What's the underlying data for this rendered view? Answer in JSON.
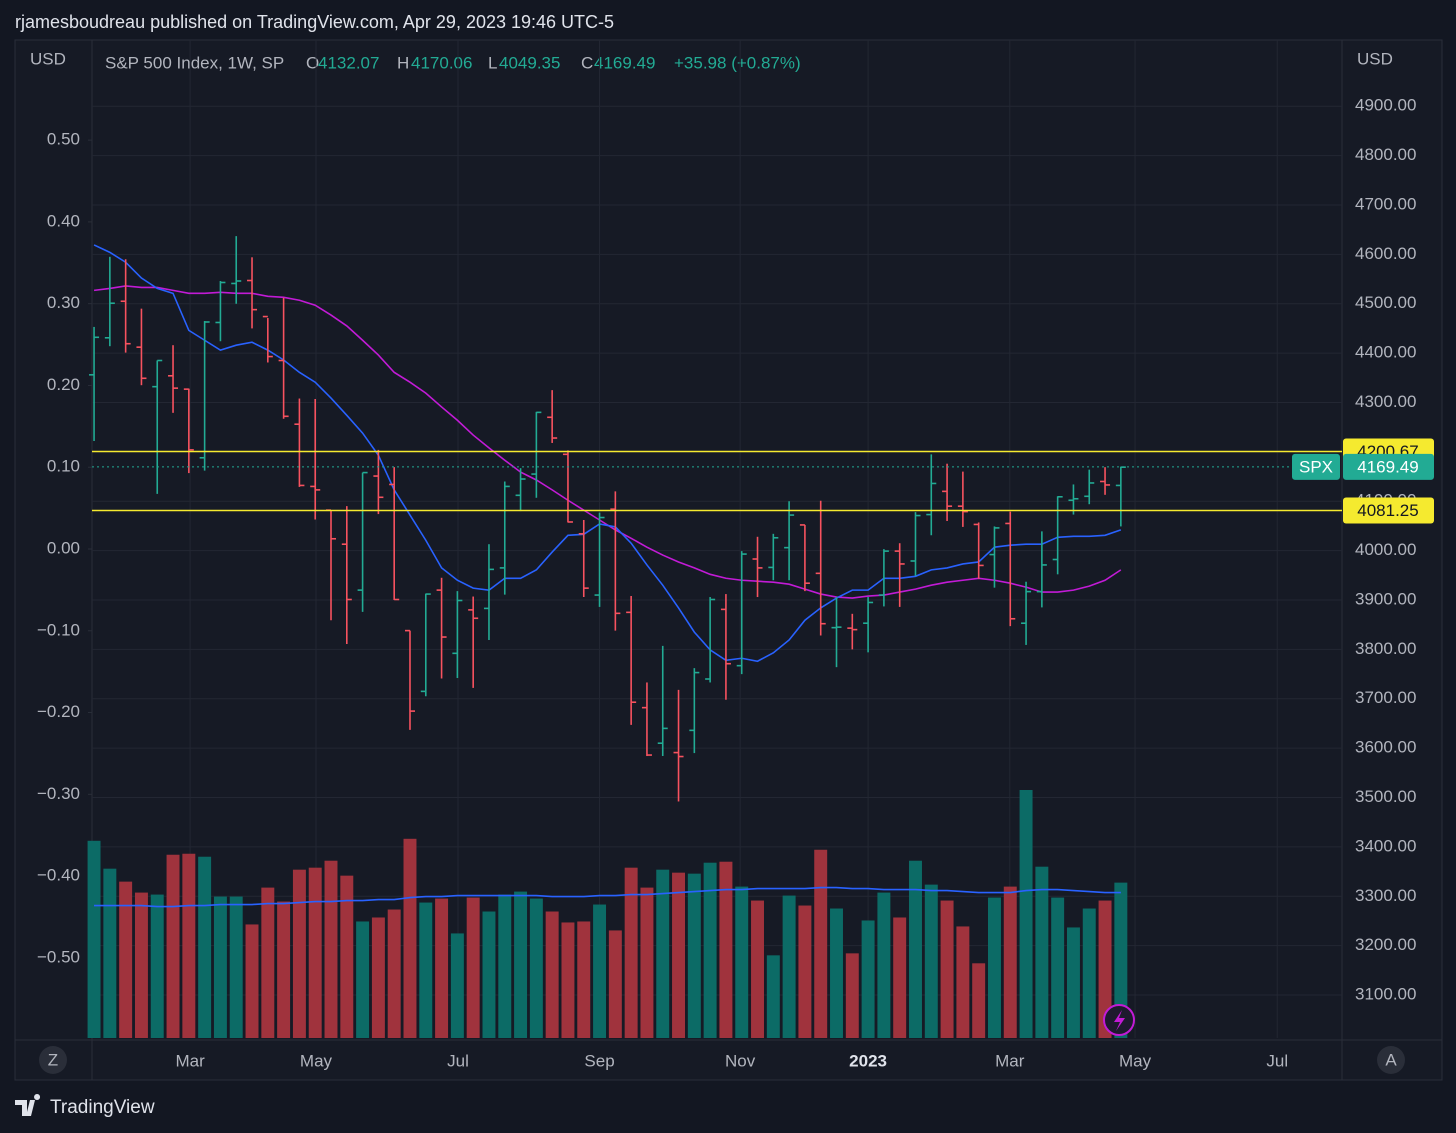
{
  "header": "rjamesboudreau published on TradingView.com, Apr 29, 2023 19:46 UTC-5",
  "ui": {
    "scale_buttons": [
      "Z",
      "A"
    ],
    "brand": "TradingView"
  },
  "chart_data": {
    "type": "ohlc",
    "title": "S&P 500 Index, 1W, SP",
    "legend": {
      "labels": [
        "O",
        "H",
        "L",
        "C"
      ],
      "values": [
        4132.07,
        4170.06,
        4049.35,
        4169.49
      ],
      "change": "+35.98 (+0.87%)"
    },
    "y_label": "USD",
    "y2_label": "USD",
    "open": [
      4356,
      4431,
      4505,
      4412,
      4332,
      4354,
      4327,
      4188,
      4462,
      4541,
      4547,
      4474,
      4385,
      4256,
      4130,
      4082,
      4013,
      3920,
      4151,
      4134,
      3838,
      3715,
      3920,
      3792,
      3880,
      3883,
      3965,
      4112,
      4155,
      4270,
      4195,
      4034,
      3910,
      4084,
      3875,
      3682,
      3610,
      3591,
      3636,
      3740,
      3881,
      3767,
      3983,
      3966,
      4006,
      4052,
      3954,
      3844,
      3843,
      3853,
      3910,
      3999,
      3979,
      4073,
      4120,
      4090,
      4053,
      3992,
      4055,
      3853,
      3917,
      3982,
      4102,
      4110,
      4140,
      4132
    ],
    "high": [
      4453,
      4595,
      4590,
      4490,
      4385,
      4416,
      4328,
      4465,
      4546,
      4637,
      4594,
      4471,
      4512,
      4308,
      4307,
      4082,
      4090,
      4158,
      4204,
      4169,
      3838,
      3913,
      3945,
      3918,
      3907,
      4013,
      4140,
      4167,
      4281,
      4325,
      4203,
      4062,
      4077,
      4120,
      3908,
      3733,
      3807,
      3718,
      3762,
      3906,
      3912,
      3999,
      4028,
      4034,
      4100,
      4052,
      4101,
      3906,
      3872,
      3906,
      4003,
      4015,
      4078,
      4195,
      4176,
      4160,
      4057,
      4049,
      4079,
      3937,
      4039,
      4110,
      4134,
      4164,
      4169,
      4170
    ],
    "low": [
      4222,
      4414,
      4401,
      4335,
      4115,
      4279,
      4157,
      4162,
      4424,
      4500,
      4450,
      4381,
      4267,
      4129,
      4063,
      3859,
      3811,
      3876,
      4074,
      3900,
      3637,
      3705,
      3741,
      3742,
      3722,
      3819,
      3911,
      4080,
      4107,
      4218,
      4057,
      3906,
      3886,
      3838,
      3647,
      3584,
      3584,
      3492,
      3590,
      3733,
      3698,
      3750,
      3906,
      3940,
      3940,
      3918,
      3828,
      3764,
      3800,
      3794,
      3887,
      3886,
      3949,
      4031,
      4060,
      4048,
      3943,
      3925,
      3847,
      3809,
      3885,
      3952,
      4073,
      4094,
      4113,
      4049
    ],
    "close": [
      4432,
      4501,
      4419,
      4349,
      4385,
      4329,
      4204,
      4463,
      4543,
      4546,
      4488,
      4393,
      4272,
      4132,
      4123,
      4024,
      3901,
      4158,
      4108,
      3901,
      3675,
      3912,
      3825,
      3899,
      3863,
      3962,
      4130,
      4145,
      4280,
      4228,
      4058,
      3924,
      4067,
      3873,
      3693,
      3586,
      3640,
      3583,
      3753,
      3901,
      3771,
      3993,
      3965,
      4026,
      4072,
      3934,
      3852,
      3845,
      3840,
      3895,
      3999,
      3973,
      4071,
      4136,
      4090,
      4079,
      3970,
      4046,
      3862,
      3917,
      3971,
      4109,
      4105,
      4137,
      4133,
      4169
    ],
    "ma_fast": [
      4619,
      4604,
      4584,
      4552,
      4531,
      4521,
      4446,
      4426,
      4406,
      4416,
      4422,
      4406,
      4386,
      4361,
      4341,
      4309,
      4274,
      4238,
      4193,
      4123,
      4072,
      4021,
      3965,
      3940,
      3924,
      3920,
      3944,
      3944,
      3961,
      3997,
      4031,
      4033,
      4054,
      4048,
      4015,
      3971,
      3930,
      3884,
      3835,
      3799,
      3778,
      3782,
      3776,
      3793,
      3819,
      3859,
      3884,
      3904,
      3920,
      3920,
      3944,
      3944,
      3948,
      3961,
      3965,
      3973,
      3977,
      4007,
      4011,
      4013,
      4013,
      4027,
      4029,
      4029,
      4031,
      4042
    ],
    "ma_slow": [
      4527,
      4531,
      4536,
      4533,
      4533,
      4527,
      4521,
      4521,
      4523,
      4521,
      4521,
      4515,
      4513,
      4507,
      4497,
      4477,
      4455,
      4426,
      4396,
      4361,
      4341,
      4319,
      4291,
      4264,
      4234,
      4208,
      4183,
      4159,
      4143,
      4123,
      4102,
      4082,
      4062,
      4042,
      4025,
      4007,
      3991,
      3977,
      3965,
      3952,
      3944,
      3940,
      3938,
      3936,
      3932,
      3922,
      3912,
      3906,
      3904,
      3908,
      3910,
      3916,
      3922,
      3930,
      3936,
      3940,
      3944,
      3940,
      3934,
      3926,
      3916,
      3916,
      3920,
      3928,
      3940,
      3961
    ],
    "volume": [
      19.8,
      17.0,
      15.7,
      14.6,
      14.4,
      18.4,
      18.5,
      18.2,
      14.2,
      14.2,
      11.4,
      15.1,
      13.7,
      16.9,
      17.1,
      17.8,
      16.3,
      11.7,
      12.1,
      12.9,
      20.0,
      13.6,
      14.0,
      10.5,
      14.1,
      12.7,
      14.4,
      14.7,
      14.0,
      12.7,
      11.6,
      11.7,
      13.4,
      10.8,
      17.1,
      15.1,
      16.9,
      16.6,
      16.5,
      17.6,
      17.7,
      15.2,
      13.8,
      8.3,
      14.3,
      13.3,
      18.9,
      13.0,
      8.5,
      11.8,
      14.6,
      12.1,
      17.8,
      15.4,
      13.8,
      11.2,
      7.5,
      14.1,
      15.2,
      24.9,
      17.2,
      14.1,
      11.1,
      13.0,
      13.8,
      15.6
    ],
    "volume_ma": [
      13.3,
      13.3,
      13.3,
      13.3,
      13.2,
      13.2,
      13.3,
      13.3,
      13.4,
      13.4,
      13.4,
      13.5,
      13.5,
      13.6,
      13.7,
      13.7,
      13.8,
      13.8,
      13.9,
      13.9,
      14.1,
      14.2,
      14.2,
      14.3,
      14.3,
      14.3,
      14.3,
      14.3,
      14.3,
      14.2,
      14.2,
      14.2,
      14.3,
      14.3,
      14.4,
      14.4,
      14.5,
      14.6,
      14.7,
      14.8,
      14.9,
      14.9,
      15.0,
      15.0,
      15.0,
      15.0,
      15.1,
      15.1,
      15.0,
      15.0,
      14.9,
      14.9,
      14.9,
      14.8,
      14.8,
      14.7,
      14.6,
      14.6,
      14.6,
      14.8,
      14.9,
      14.9,
      14.8,
      14.7,
      14.6,
      14.6
    ],
    "colors": {
      "up": "#22ab94",
      "down": "#f7525f",
      "volume_up": "#0c6b66",
      "volume_down": "#a0333d",
      "ma_fast": "#2962ff",
      "ma_slow": "#c21bd6",
      "volume_ma": "#2962ff"
    },
    "levels": [
      {
        "value": 4200.67,
        "color": "#f5ea2f"
      },
      {
        "value": 4081.25,
        "color": "#f5ea2f"
      }
    ],
    "last": {
      "name": "SPX",
      "value": 4169.49,
      "color": "#22ab94"
    },
    "xlim": [
      -0.13,
      79
    ],
    "xticks": [
      {
        "value": 6.08,
        "label": "Mar"
      },
      {
        "value": 14.05,
        "label": "May"
      },
      {
        "value": 23.04,
        "label": "Jul"
      },
      {
        "value": 32.0,
        "label": "Sep"
      },
      {
        "value": 40.9,
        "label": "Nov"
      },
      {
        "value": 49.0,
        "label": "2023"
      },
      {
        "value": 57.97,
        "label": "Mar"
      },
      {
        "value": 65.9,
        "label": "May"
      },
      {
        "value": 74.9,
        "label": "Jul"
      }
    ],
    "ylim": [
      3013,
      5030
    ],
    "yticks": [
      {
        "value": 3100,
        "label": "3100.00"
      },
      {
        "value": 3200,
        "label": "3200.00"
      },
      {
        "value": 3300,
        "label": "3300.00"
      },
      {
        "value": 3400,
        "label": "3400.00"
      },
      {
        "value": 3500,
        "label": "3500.00"
      },
      {
        "value": 3600,
        "label": "3600.00"
      },
      {
        "value": 3700,
        "label": "3700.00"
      },
      {
        "value": 3800,
        "label": "3800.00"
      },
      {
        "value": 3900,
        "label": "3900.00"
      },
      {
        "value": 4000,
        "label": "4000.00"
      },
      {
        "value": 4100,
        "label": "4100.00"
      },
      {
        "value": 4200,
        "label": "4200.00"
      },
      {
        "value": 4300,
        "label": "4300.00"
      },
      {
        "value": 4400,
        "label": "4400.00"
      },
      {
        "value": 4500,
        "label": "4500.00"
      },
      {
        "value": 4600,
        "label": "4600.00"
      },
      {
        "value": 4700,
        "label": "4700.00"
      },
      {
        "value": 4800,
        "label": "4800.00"
      },
      {
        "value": 4900,
        "label": "4900.00"
      }
    ],
    "y2lim": [
      -0.598,
      0.62
    ],
    "y2ticks": [
      {
        "value": -0.5,
        "label": "−0.50"
      },
      {
        "value": -0.4,
        "label": "−0.40"
      },
      {
        "value": -0.3,
        "label": "−0.30"
      },
      {
        "value": -0.2,
        "label": "−0.20"
      },
      {
        "value": -0.1,
        "label": "−0.10"
      },
      {
        "value": 0,
        "label": "0.00"
      },
      {
        "value": 0.1,
        "label": "0.10"
      },
      {
        "value": 0.2,
        "label": "0.20"
      },
      {
        "value": 0.3,
        "label": "0.30"
      },
      {
        "value": 0.4,
        "label": "0.40"
      },
      {
        "value": 0.5,
        "label": "0.50"
      }
    ],
    "vlim": [
      0,
      100
    ],
    "grid": true
  }
}
